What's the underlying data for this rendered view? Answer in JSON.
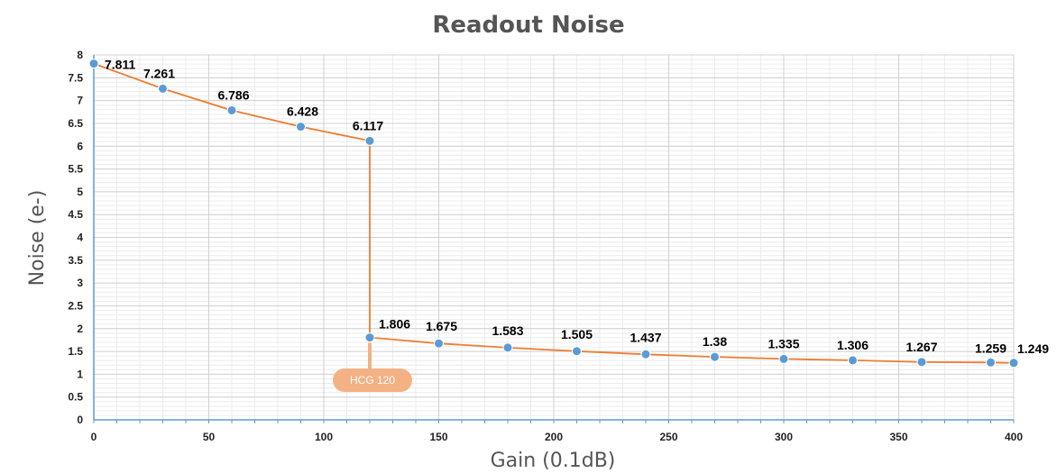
{
  "chart_data": {
    "type": "line",
    "title": "Readout Noise",
    "xlabel": "Gain (0.1dB)",
    "ylabel": "Noise (e-)",
    "xlim": [
      0,
      400
    ],
    "ylim": [
      0,
      8
    ],
    "xticks": [
      "0",
      "50",
      "100",
      "150",
      "200",
      "250",
      "300",
      "350",
      "400"
    ],
    "yticks": [
      "0",
      "0.5",
      "1",
      "1.5",
      "2",
      "2.5",
      "3",
      "3.5",
      "4",
      "4.5",
      "5",
      "5.5",
      "6",
      "6.5",
      "7",
      "7.5",
      "8"
    ],
    "grid": true,
    "series": [
      {
        "x": [
          0,
          30,
          60,
          90,
          120,
          120,
          150,
          180,
          210,
          240,
          270,
          300,
          330,
          360,
          390,
          400
        ],
        "values": [
          7.811,
          7.261,
          6.786,
          6.428,
          6.117,
          1.806,
          1.675,
          1.583,
          1.505,
          1.437,
          1.38,
          1.335,
          1.306,
          1.267,
          1.259,
          1.249
        ],
        "labels": [
          "7.811",
          "7.261",
          "6.786",
          "6.428",
          "6.117",
          "1.806",
          "1.675",
          "1.583",
          "1.505",
          "1.437",
          "1.38",
          "1.335",
          "1.306",
          "1.267",
          "1.259",
          "1.249"
        ]
      }
    ],
    "annotations": [
      {
        "text": "HCG 120",
        "x": 120,
        "y": 1.806
      }
    ],
    "colors": {
      "line": "#ED7D31",
      "marker": "#5B9BD5",
      "grid_major": "#D0D0D0",
      "grid_minor": "#ECECEC",
      "axis": "#5B9BD5",
      "annotation_fill": "#F4B183",
      "annotation_line": "#F4B183",
      "title": "#555555"
    }
  }
}
